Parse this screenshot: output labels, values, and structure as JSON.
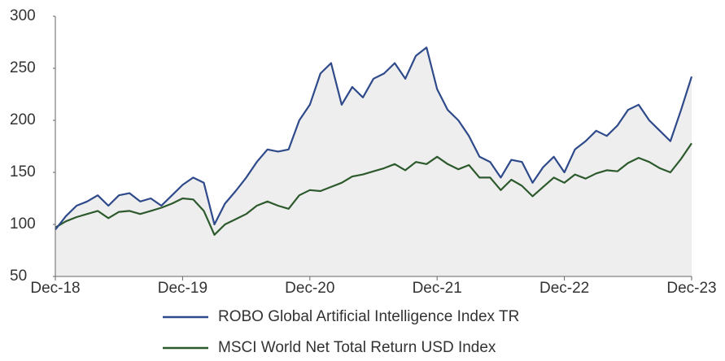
{
  "chart_data": {
    "type": "line",
    "categories": [
      "Dec-18",
      "Jan-19",
      "Feb-19",
      "Mar-19",
      "Apr-19",
      "May-19",
      "Jun-19",
      "Jul-19",
      "Aug-19",
      "Sep-19",
      "Oct-19",
      "Nov-19",
      "Dec-19",
      "Jan-20",
      "Feb-20",
      "Mar-20",
      "Apr-20",
      "May-20",
      "Jun-20",
      "Jul-20",
      "Aug-20",
      "Sep-20",
      "Oct-20",
      "Nov-20",
      "Dec-20",
      "Jan-21",
      "Feb-21",
      "Mar-21",
      "Apr-21",
      "May-21",
      "Jun-21",
      "Jul-21",
      "Aug-21",
      "Sep-21",
      "Oct-21",
      "Nov-21",
      "Dec-21",
      "Jan-22",
      "Feb-22",
      "Mar-22",
      "Apr-22",
      "May-22",
      "Jun-22",
      "Jul-22",
      "Aug-22",
      "Sep-22",
      "Oct-22",
      "Nov-22",
      "Dec-22",
      "Jan-23",
      "Feb-23",
      "Mar-23",
      "Apr-23",
      "May-23",
      "Jun-23",
      "Jul-23",
      "Aug-23",
      "Sep-23",
      "Oct-23",
      "Nov-23",
      "Dec-23"
    ],
    "xtick_every": 12,
    "series": [
      {
        "name": "ROBO Global Artificial Intelligence Index TR",
        "color": "#2e4a8a",
        "fill": "#efeeee",
        "values": [
          95,
          108,
          118,
          122,
          128,
          118,
          128,
          130,
          122,
          125,
          118,
          128,
          138,
          145,
          140,
          100,
          120,
          132,
          145,
          160,
          172,
          170,
          172,
          200,
          215,
          245,
          255,
          215,
          232,
          222,
          240,
          245,
          255,
          240,
          262,
          270,
          230,
          210,
          200,
          185,
          165,
          160,
          145,
          162,
          160,
          140,
          155,
          165,
          150,
          172,
          180,
          190,
          185,
          195,
          210,
          215,
          200,
          190,
          180,
          210,
          242
        ]
      },
      {
        "name": "MSCI World Net Total Return USD Index",
        "color": "#2d5a2d",
        "values": [
          97,
          103,
          107,
          110,
          113,
          106,
          112,
          113,
          110,
          113,
          116,
          120,
          125,
          124,
          113,
          90,
          100,
          105,
          110,
          118,
          122,
          118,
          115,
          128,
          133,
          132,
          136,
          140,
          146,
          148,
          151,
          154,
          158,
          152,
          160,
          158,
          165,
          158,
          153,
          157,
          145,
          145,
          133,
          143,
          137,
          127,
          136,
          145,
          140,
          148,
          144,
          149,
          152,
          151,
          159,
          164,
          160,
          154,
          150,
          163,
          178
        ]
      }
    ],
    "ylim": [
      50,
      300
    ],
    "yticks": [
      50,
      100,
      150,
      200,
      250,
      300
    ]
  }
}
